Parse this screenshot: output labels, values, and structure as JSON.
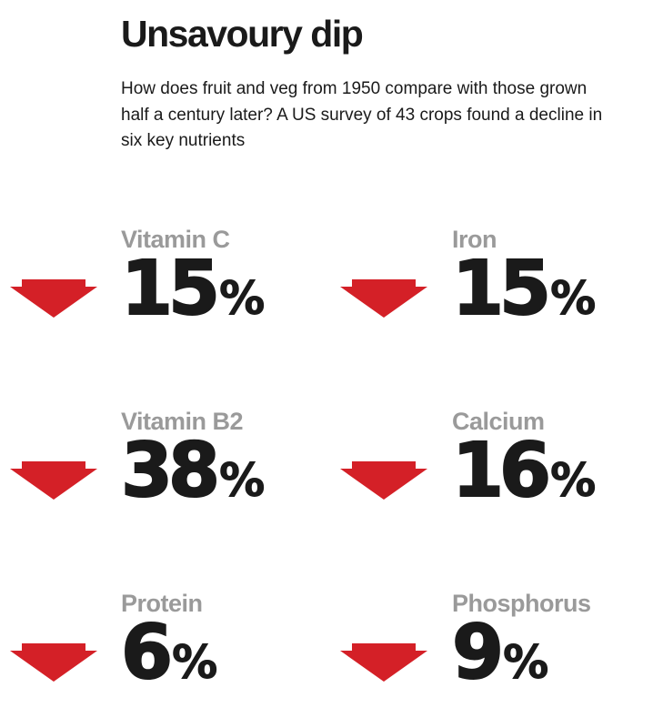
{
  "title": "Unsavoury dip",
  "subtitle": "How does fruit and veg from 1950 compare with those grown half a century later? A US survey of 43 crops found a decline in six key nutrients",
  "colors": {
    "arrow": "#d42027",
    "label": "#9a9a9a",
    "text": "#1a1a1a"
  },
  "arrow_icon": "down-arrow-icon",
  "nutrients": [
    {
      "name": "Vitamin C",
      "value": "15",
      "unit": "%"
    },
    {
      "name": "Iron",
      "value": "15",
      "unit": "%"
    },
    {
      "name": "Vitamin B2",
      "value": "38",
      "unit": "%"
    },
    {
      "name": "Calcium",
      "value": "16",
      "unit": "%"
    },
    {
      "name": "Protein",
      "value": "6",
      "unit": "%"
    },
    {
      "name": "Phosphorus",
      "value": "9",
      "unit": "%"
    }
  ]
}
